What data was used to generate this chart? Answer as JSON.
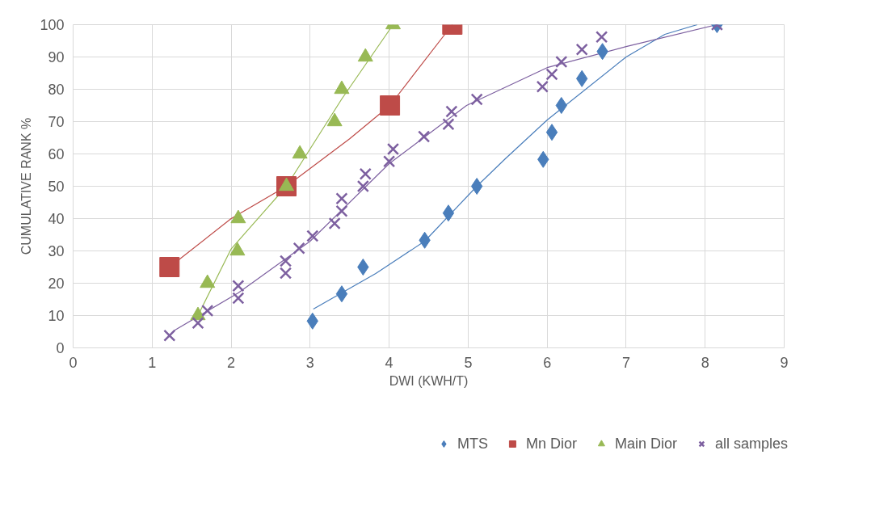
{
  "chart_data": {
    "type": "scatter",
    "xlabel": "DWI (KWH/T)",
    "ylabel": "CUMULATIVE RANK %",
    "xlim": [
      0,
      9
    ],
    "xticks": [
      0,
      1,
      2,
      3,
      4,
      5,
      6,
      7,
      8,
      9
    ],
    "ylim": [
      0,
      100
    ],
    "yticks": [
      0,
      10,
      20,
      30,
      40,
      50,
      60,
      70,
      80,
      90,
      100
    ],
    "grid": true,
    "legend": "bottom",
    "series": [
      {
        "name": "MTS",
        "color": "#4a7ebb",
        "marker": "diamond",
        "x": [
          3.03,
          3.4,
          3.67,
          4.45,
          4.75,
          5.11,
          5.95,
          6.06,
          6.18,
          6.44,
          6.7,
          8.15
        ],
        "values": [
          8.3,
          16.7,
          25,
          33.3,
          41.7,
          50,
          58.3,
          66.7,
          75,
          83.3,
          91.7,
          100
        ]
      },
      {
        "name": "Mn Dior",
        "color": "#be4b48",
        "marker": "square",
        "x": [
          1.22,
          2.7,
          4.01,
          4.8
        ],
        "values": [
          25,
          50,
          75,
          100
        ]
      },
      {
        "name": "Main Dior",
        "color": "#98b954",
        "marker": "triangle",
        "x": [
          1.58,
          1.7,
          2.08,
          2.09,
          2.7,
          2.87,
          3.31,
          3.4,
          3.7,
          4.05
        ],
        "values": [
          10,
          20,
          30,
          40,
          50,
          60,
          70,
          80,
          90,
          100
        ]
      },
      {
        "name": "all samples",
        "color": "#7d60a0",
        "marker": "cross",
        "x": [
          1.22,
          1.58,
          1.7,
          2.09,
          2.09,
          2.69,
          2.69,
          2.86,
          3.03,
          3.31,
          3.4,
          3.4,
          3.67,
          3.7,
          4.0,
          4.05,
          4.44,
          4.75,
          4.79,
          5.11,
          5.94,
          6.06,
          6.18,
          6.44,
          6.69,
          8.15
        ],
        "values": [
          3.8,
          7.7,
          11.5,
          15.4,
          19.2,
          23.1,
          26.9,
          30.8,
          34.6,
          38.5,
          42.3,
          46.2,
          50,
          53.8,
          57.7,
          61.5,
          65.4,
          69.2,
          73.1,
          76.9,
          80.8,
          84.6,
          88.5,
          92.3,
          96.2,
          100
        ]
      },
      {
        "type": "line",
        "color": "#4a7ebb",
        "x": [
          3.04,
          3.83,
          4.45,
          5.11,
          5.47,
          6.0,
          7.0,
          7.49,
          7.9
        ],
        "values": [
          12,
          23,
          33,
          50,
          58.5,
          70.5,
          90,
          97,
          100
        ]
      },
      {
        "type": "line",
        "color": "#be4b48",
        "x": [
          1.22,
          2.0,
          2.7,
          3.5,
          4.01,
          4.8
        ],
        "values": [
          25,
          40,
          50,
          64.7,
          75,
          100
        ]
      },
      {
        "type": "line",
        "color": "#98b954",
        "x": [
          1.58,
          2.0,
          2.7,
          3.4,
          4.05
        ],
        "values": [
          10,
          30.6,
          50,
          77,
          100
        ]
      },
      {
        "type": "line",
        "color": "#7d60a0",
        "x": [
          1.28,
          2.09,
          3.0,
          4.0,
          4.98,
          6.0,
          7.0,
          8.15
        ],
        "values": [
          5.4,
          17,
          33,
          57,
          75,
          86.7,
          93.2,
          100
        ]
      }
    ]
  }
}
